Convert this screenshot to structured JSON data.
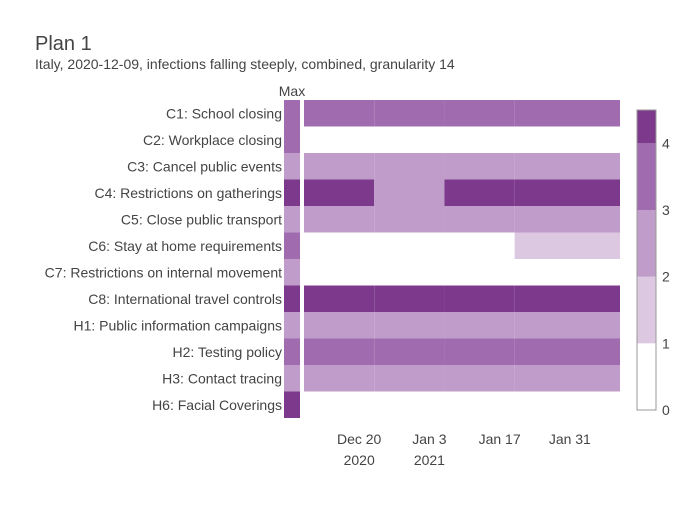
{
  "title": "Plan 1",
  "subtitle": "Italy, 2020-12-09, infections falling steeply, combined, granularity 14",
  "max_label": "Max",
  "colors": {
    "text": "#444444",
    "level_0": "#ffffff",
    "level_1": "#ddc8e1",
    "level_2": "#bf9cc9",
    "level_3": "#a06caf",
    "level_4": "#7d3a8c"
  },
  "chart_data": {
    "type": "heatmap",
    "title": "Plan 1",
    "subtitle": "Italy, 2020-12-09, infections falling steeply, combined, granularity 14",
    "x_period_starts": [
      "2020-12-09",
      "2020-12-23",
      "2021-01-06",
      "2021-01-20"
    ],
    "x_range": [
      "2020-12-09",
      "2021-02-10"
    ],
    "x_ticks": [
      {
        "date": "2020-12-20",
        "label": "Dec 20",
        "sublabel": "2020"
      },
      {
        "date": "2021-01-03",
        "label": "Jan 3",
        "sublabel": "2021"
      },
      {
        "date": "2021-01-17",
        "label": "Jan 17",
        "sublabel": ""
      },
      {
        "date": "2021-01-31",
        "label": "Jan 31",
        "sublabel": ""
      }
    ],
    "rows": [
      {
        "label": "C1: School closing",
        "max": 3,
        "values": [
          3,
          3,
          3,
          3
        ]
      },
      {
        "label": "C2: Workplace closing",
        "max": 3,
        "values": [
          0,
          0,
          0,
          0
        ]
      },
      {
        "label": "C3: Cancel public events",
        "max": 2,
        "values": [
          2,
          2,
          2,
          2
        ]
      },
      {
        "label": "C4: Restrictions on gatherings",
        "max": 4,
        "values": [
          4,
          2,
          4,
          4
        ]
      },
      {
        "label": "C5: Close public transport",
        "max": 2,
        "values": [
          2,
          2,
          2,
          2
        ]
      },
      {
        "label": "C6: Stay at home requirements",
        "max": 3,
        "values": [
          0,
          0,
          0,
          1
        ]
      },
      {
        "label": "C7: Restrictions on internal movement",
        "max": 2,
        "values": [
          0,
          0,
          0,
          0
        ]
      },
      {
        "label": "C8: International travel controls",
        "max": 4,
        "values": [
          4,
          4,
          4,
          4
        ]
      },
      {
        "label": "H1: Public information campaigns",
        "max": 2,
        "values": [
          2,
          2,
          2,
          2
        ]
      },
      {
        "label": "H2: Testing policy",
        "max": 3,
        "values": [
          3,
          3,
          3,
          3
        ]
      },
      {
        "label": "H3: Contact tracing",
        "max": 2,
        "values": [
          2,
          2,
          2,
          2
        ]
      },
      {
        "label": "H6: Facial Coverings",
        "max": 4,
        "values": [
          0,
          0,
          0,
          0
        ]
      }
    ],
    "colorbar": {
      "min": 0,
      "max": 4.5,
      "ticks": [
        0,
        1,
        2,
        3,
        4
      ]
    },
    "grid": false
  }
}
